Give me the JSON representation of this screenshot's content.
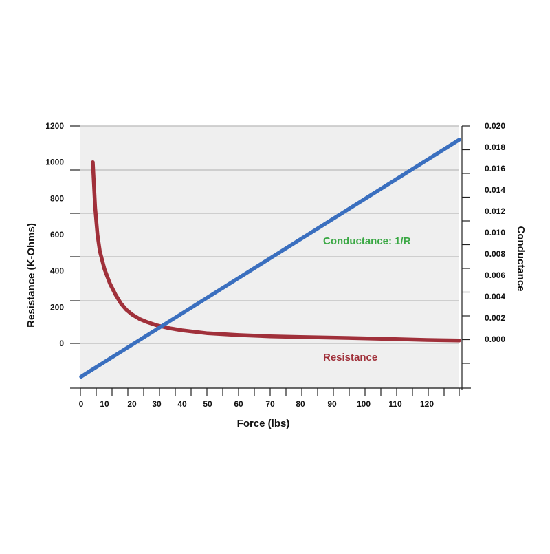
{
  "chart_data": {
    "type": "line",
    "xlabel": "Force (lbs)",
    "ylabel_left": "Resistance (K-Ohms)",
    "ylabel_right": "Conductance",
    "x_ticks": [
      "0",
      "10",
      "20",
      "30",
      "40",
      "50",
      "60",
      "70",
      "80",
      "90",
      "100",
      "110",
      "120"
    ],
    "y_left_ticks": [
      "1200",
      "1000",
      "800",
      "600",
      "400",
      "200",
      "0"
    ],
    "y_right_ticks": [
      "0.020",
      "0.018",
      "0.016",
      "0.014",
      "0.012",
      "0.010",
      "0.008",
      "0.006",
      "0.004",
      "0.002",
      "0.000"
    ],
    "grid": true,
    "series": [
      {
        "name": "Resistance",
        "color": "#a0303a",
        "axis": "left",
        "points": [
          [
            5,
            1000
          ],
          [
            6,
            750
          ],
          [
            7,
            600
          ],
          [
            8,
            510
          ],
          [
            10,
            410
          ],
          [
            12,
            330
          ],
          [
            14,
            270
          ],
          [
            16,
            220
          ],
          [
            18,
            185
          ],
          [
            20,
            160
          ],
          [
            23,
            135
          ],
          [
            26,
            118
          ],
          [
            30,
            100
          ],
          [
            35,
            84
          ],
          [
            40,
            72
          ],
          [
            50,
            56
          ],
          [
            60,
            46
          ],
          [
            70,
            39
          ],
          [
            80,
            35
          ],
          [
            90,
            32
          ],
          [
            100,
            28
          ],
          [
            110,
            24
          ],
          [
            120,
            19
          ],
          [
            130,
            16
          ]
        ]
      },
      {
        "name": "Conductance: 1/R",
        "color": "#3a6fbf",
        "axis": "right",
        "points": [
          [
            0,
            -0.0035
          ],
          [
            130,
            0.0187
          ]
        ]
      }
    ],
    "annotations": [
      {
        "text": "Conductance: 1/R",
        "color": "#3aa844"
      },
      {
        "text": "Resistance",
        "color": "#a0303a"
      }
    ]
  }
}
